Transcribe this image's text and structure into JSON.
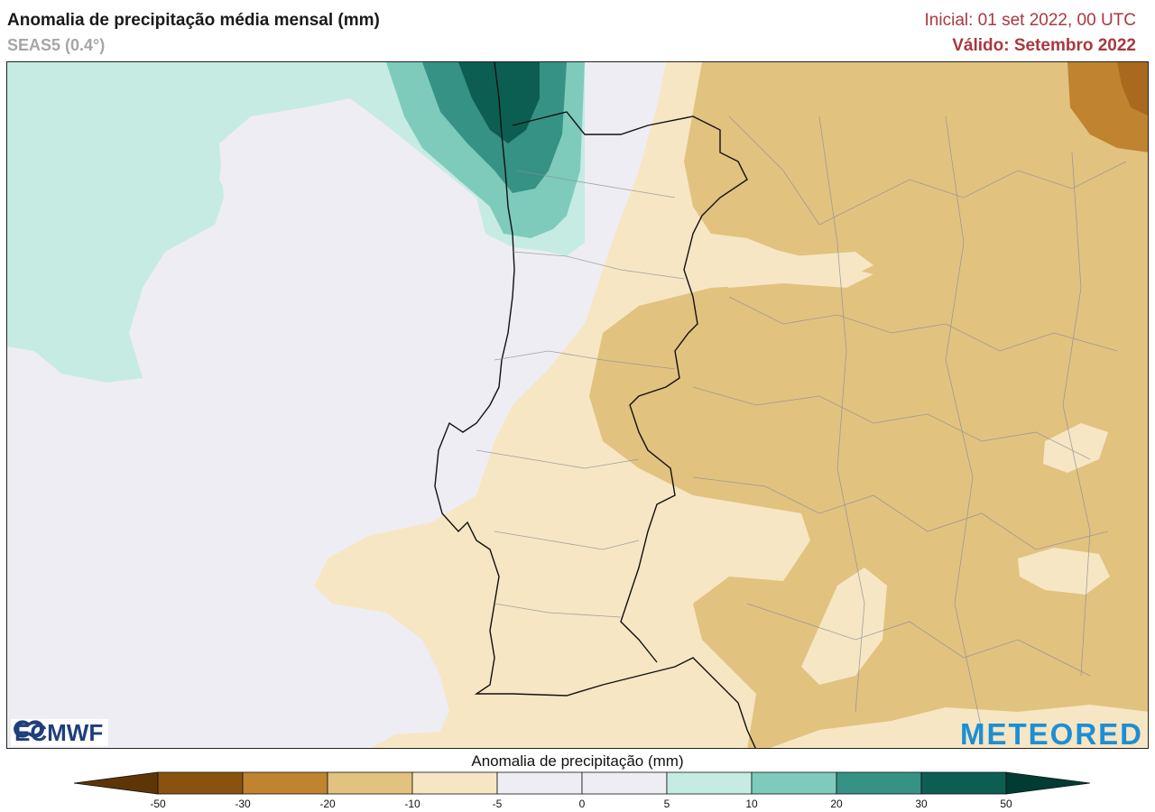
{
  "header": {
    "title": "Anomalia de precipitação média mensal (mm)",
    "subtitle": "SEAS5 (0.4°)",
    "initial": "Inicial: 01 set 2022, 00 UTC",
    "valid": "Válido: Setembro 2022"
  },
  "logos": {
    "ecmwf": "ECMWF",
    "meteored": "METEORED"
  },
  "colorbar": {
    "title": "Anomalia de precipitação (mm)",
    "ticks": [
      "-50",
      "-30",
      "-20",
      "-10",
      "-5",
      "0",
      "5",
      "10",
      "20",
      "30",
      "50"
    ],
    "colors": [
      "#8b520f",
      "#c0832f",
      "#e2c27f",
      "#f6e6c3",
      "#eeedf3",
      "#eeedf3",
      "#c6ebe3",
      "#7ecbbb",
      "#359285",
      "#0d5e52"
    ],
    "extend_low_color": "#5e3606",
    "extend_high_color": "#003c32"
  },
  "map": {
    "region": "Portugal / Iberian Peninsula",
    "land_colors": {
      "pale_tan": "#f6e6c3",
      "tan": "#e2c27f",
      "brown": "#c0832f",
      "neutral": "#eeedf3",
      "light_teal": "#c6ebe3",
      "teal": "#7ecbbb",
      "dark_teal": "#359285",
      "darkest_teal": "#0d5e52"
    }
  }
}
